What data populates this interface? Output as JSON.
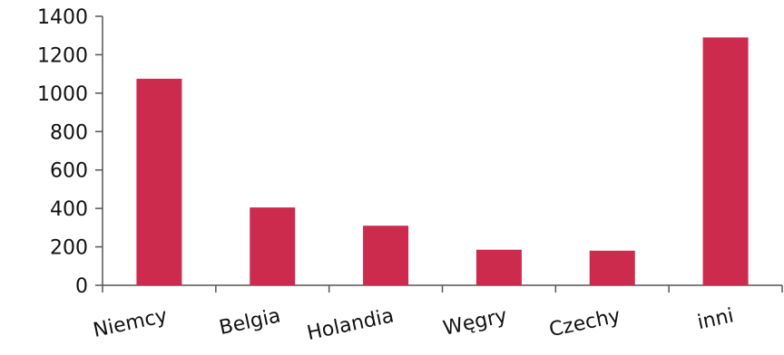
{
  "chart_data": {
    "type": "bar",
    "categories": [
      "Niemcy",
      "Belgia",
      "Holandia",
      "Węgry",
      "Czechy",
      "inni"
    ],
    "values": [
      1075,
      405,
      310,
      185,
      180,
      1290
    ],
    "title": "",
    "xlabel": "",
    "ylabel": "",
    "ylim": [
      0,
      1400
    ],
    "yticks": [
      0,
      200,
      400,
      600,
      800,
      1000,
      1200,
      1400
    ],
    "ytick_labels": [
      "0",
      "200",
      "400",
      "600",
      "800",
      "1000",
      "1200",
      "1400"
    ],
    "grid": false,
    "legend": "none",
    "bar_color": "#cc2b4e",
    "axis_color": "#555555"
  }
}
